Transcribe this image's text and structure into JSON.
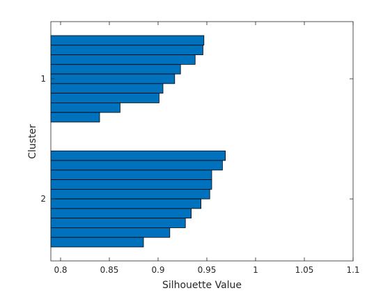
{
  "chart_data": {
    "type": "bar",
    "orientation": "horizontal",
    "xlabel": "Silhouette Value",
    "ylabel": "Cluster",
    "xlim": [
      0.79,
      1.1
    ],
    "xticks": [
      0.8,
      0.85,
      0.9,
      0.95,
      1,
      1.05,
      1.1
    ],
    "xtick_labels": [
      "0.8",
      "0.85",
      "0.9",
      "0.95",
      "1",
      "1.05",
      "1.1"
    ],
    "grid": false,
    "bar_color": "#0072BD",
    "edge_color": "#000000",
    "clusters": [
      {
        "label": "1",
        "values": [
          0.947,
          0.946,
          0.938,
          0.923,
          0.917,
          0.905,
          0.901,
          0.861,
          0.84
        ]
      },
      {
        "label": "2",
        "values": [
          0.969,
          0.966,
          0.955,
          0.955,
          0.953,
          0.944,
          0.934,
          0.928,
          0.912,
          0.885
        ]
      }
    ]
  }
}
